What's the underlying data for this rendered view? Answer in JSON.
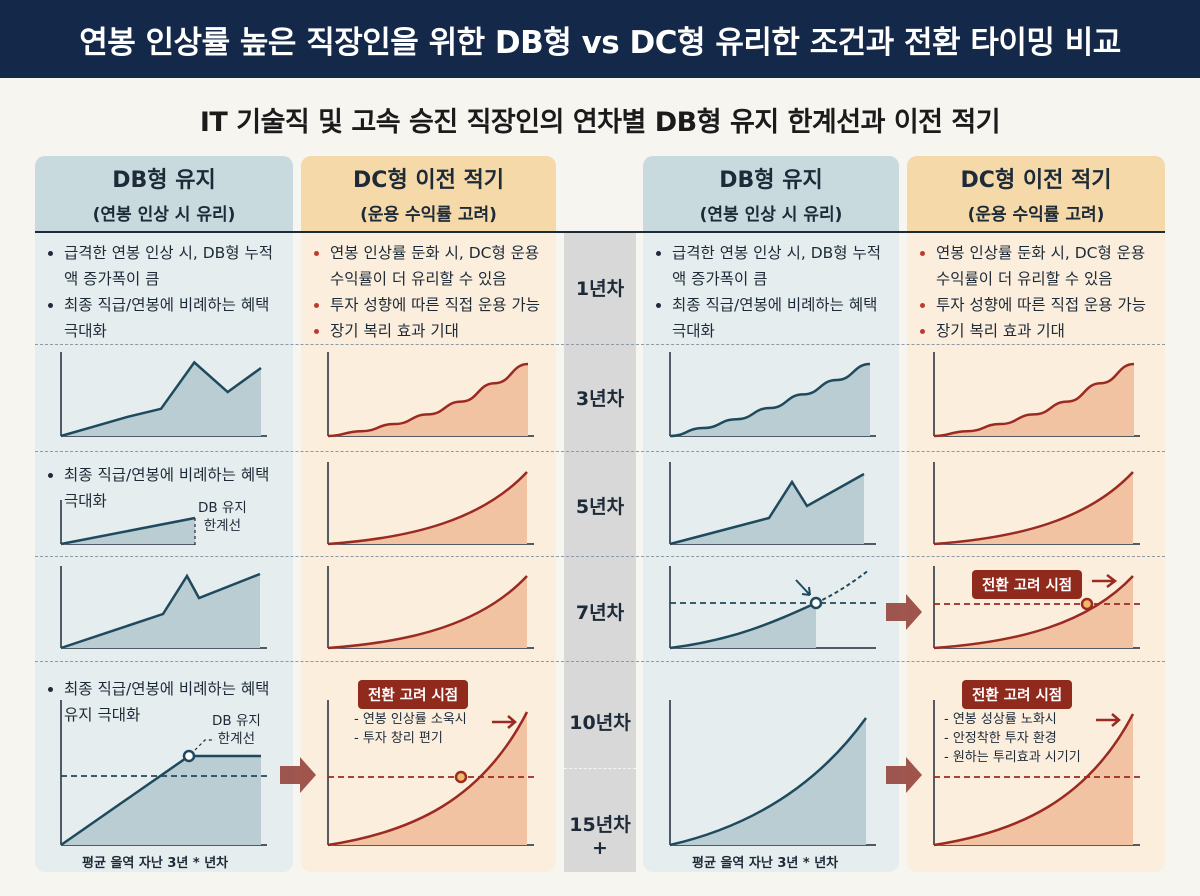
{
  "header": {
    "title": "연봉 인상률 높은 직장인을 위한 DB형 vs DC형 유리한 조건과 전환 타이밍 비교"
  },
  "subtitle": "IT 기술직 및 고속 승진 직장인의 연차별 DB형 유지 한계선과 이전 적기",
  "columns": [
    {
      "title": "DB형 유지",
      "sub": "(연봉 인상 시 유리)"
    },
    {
      "title": "DC형 이전 적기",
      "sub": "(운용 수익률 고려)"
    },
    {
      "title": "DB형 유지",
      "sub": "(연봉 인상 시 유리)"
    },
    {
      "title": "DC형 이전 적기",
      "sub": "(운용 수익률 고려)"
    }
  ],
  "years": [
    "1년차",
    "3년차",
    "5년차",
    "7년차",
    "10년차",
    "15년차+"
  ],
  "bullets": {
    "db_row1": [
      "급격한 연봉 인상 시, DB형 누적액 증가폭이 큼",
      "최종 직급/연봉에 비례하는 혜택 극대화"
    ],
    "dc_row1": [
      "연봉 인상률 둔화 시, DC형 운용 수익률이 더 유리할 수 있음",
      "투자 성향에 따른 직접 운용 가능",
      "장기 복리 효과 기대"
    ],
    "db_row3": [
      "최종 직급/연봉에 비례하는 혜택 극대화"
    ],
    "db_row5": [
      "최종 직급/연봉에 비례하는 혜택 유지 극대화"
    ]
  },
  "annotations": {
    "db_limit": "DB 유지\n한계선",
    "callout": "전환 고려 시점",
    "left_notes": [
      "- 연봉 인상률 소욱시",
      "- 투자 창리 편기"
    ],
    "right_notes": [
      "- 연봉 성상률 노화시",
      "- 안정착한 투자 환경",
      "- 원하는 투리효과 시기기"
    ],
    "xcaption": "평균 을역 자난 3년 * 년차"
  },
  "colors": {
    "navy": "#14294a",
    "db_line": "#1f4a5e",
    "db_fill": "#b9cdd3",
    "dc_line": "#9b2a22",
    "dc_fill": "#f2c3a3",
    "accent": "#c0392b"
  },
  "chart_data": [
    {
      "type": "area",
      "panel": "DB형 유지 · 3년차 (left)",
      "x": [
        0,
        1,
        2,
        3,
        4,
        5,
        6
      ],
      "series": [
        {
          "values": [
            0,
            0.12,
            0.24,
            0.34,
            0.92,
            0.55,
            0.85
          ]
        }
      ],
      "ylim": [
        0,
        1
      ]
    },
    {
      "type": "area",
      "panel": "DC형 이전 적기 · 3년차 (left)",
      "x": [
        0,
        1,
        2,
        3,
        4,
        5,
        6
      ],
      "series": [
        {
          "values": [
            0,
            0.06,
            0.15,
            0.27,
            0.43,
            0.66,
            0.9
          ]
        }
      ],
      "ylim": [
        0,
        1
      ]
    },
    {
      "type": "area",
      "panel": "DB형 유지 · 3년차 (right)",
      "x": [
        0,
        1,
        2,
        3,
        4,
        5,
        6
      ],
      "series": [
        {
          "values": [
            0,
            0.1,
            0.21,
            0.35,
            0.52,
            0.7,
            0.9
          ]
        }
      ],
      "ylim": [
        0,
        1
      ]
    },
    {
      "type": "area",
      "panel": "DC형 이전 적기 · 3년차 (right)",
      "x": [
        0,
        1,
        2,
        3,
        4,
        5,
        6
      ],
      "series": [
        {
          "values": [
            0,
            0.06,
            0.15,
            0.27,
            0.43,
            0.66,
            0.9
          ]
        }
      ],
      "ylim": [
        0,
        1
      ]
    }
  ]
}
